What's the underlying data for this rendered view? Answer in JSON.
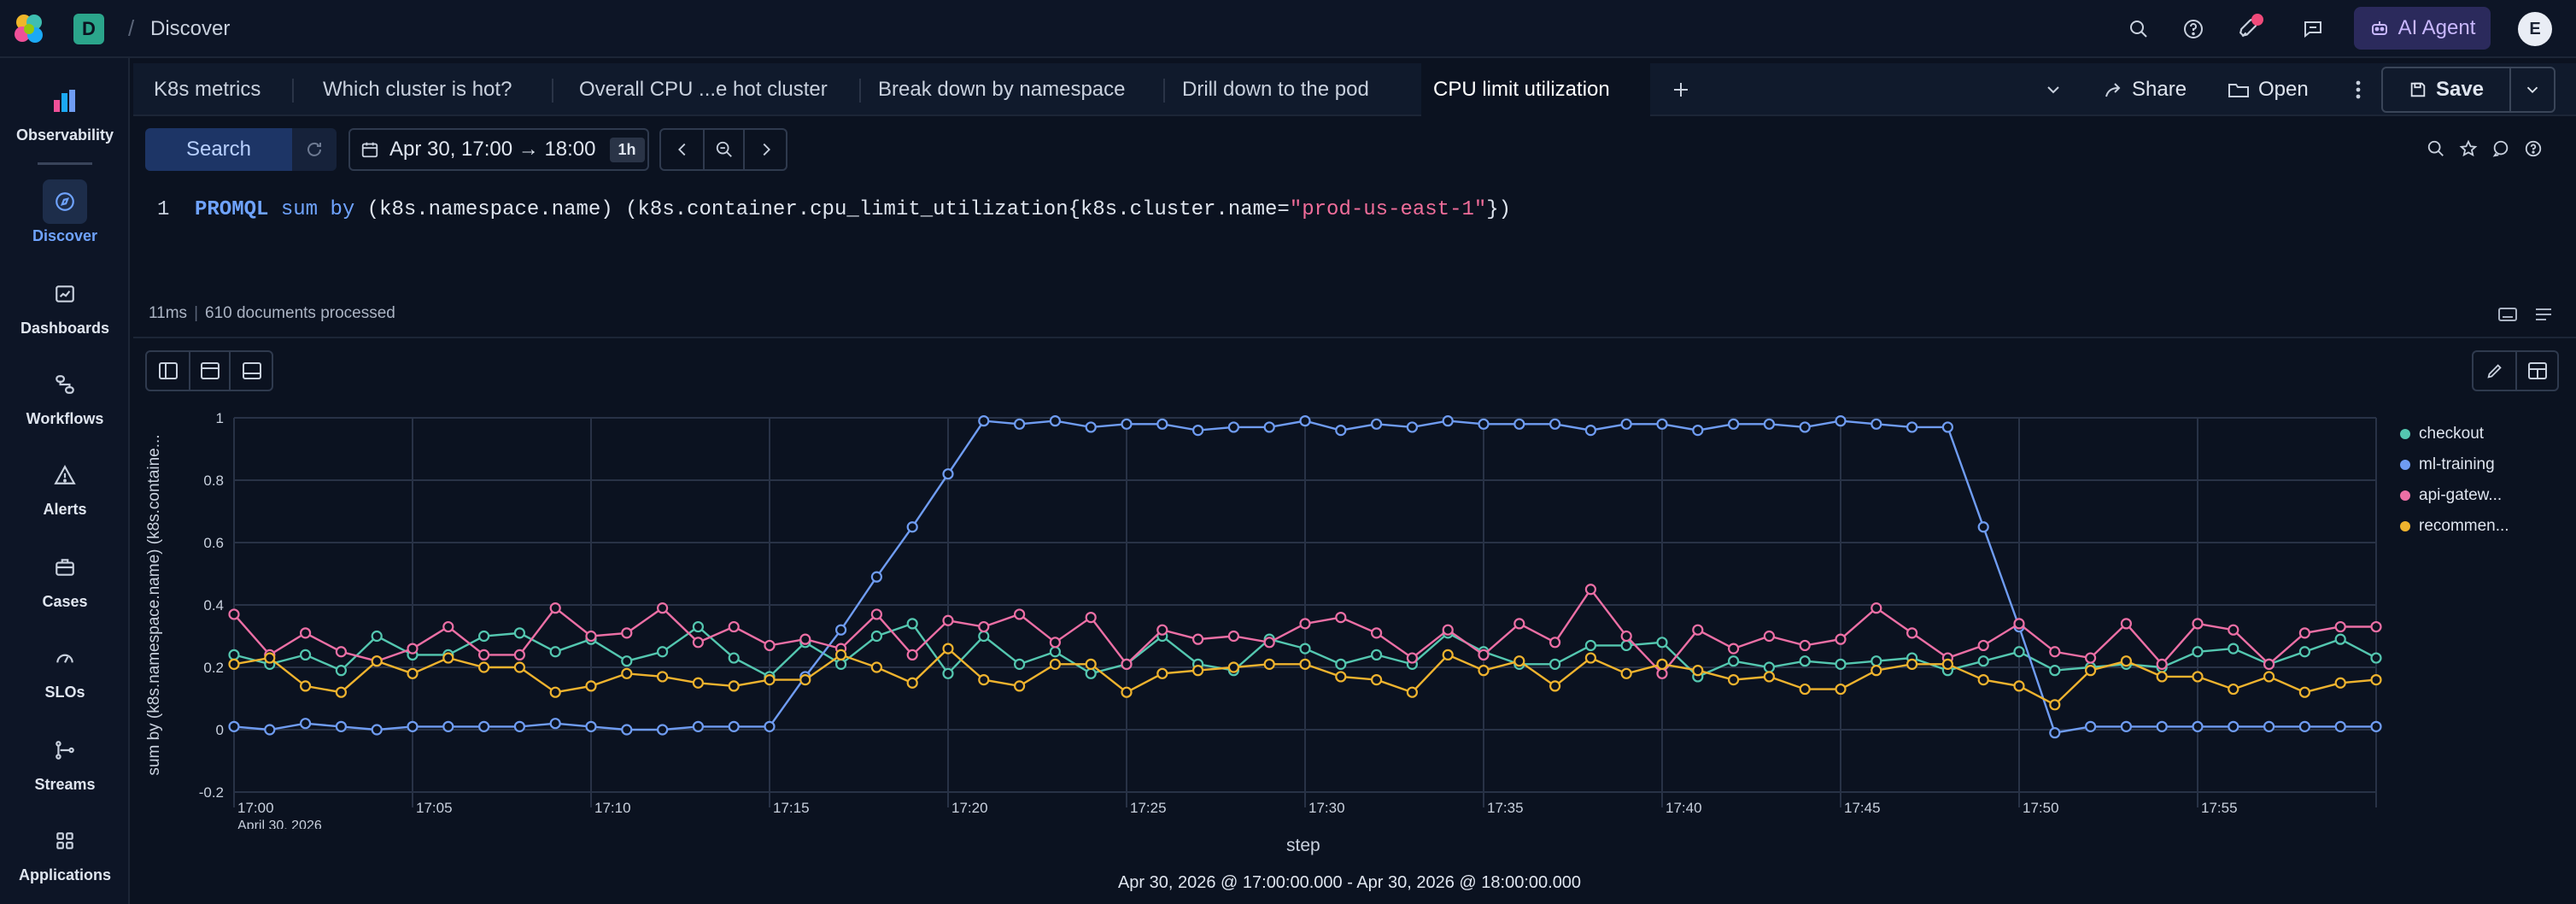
{
  "header": {
    "space_initial": "D",
    "breadcrumb": "Discover",
    "ai_agent_label": "AI Agent",
    "user_initial": "E"
  },
  "nav": {
    "items": [
      {
        "label": "Observability",
        "icon": "observability-icon"
      },
      {
        "label": "Discover",
        "icon": "discover-icon",
        "active": true
      },
      {
        "label": "Dashboards",
        "icon": "dashboards-icon"
      },
      {
        "label": "Workflows",
        "icon": "workflows-icon"
      },
      {
        "label": "Alerts",
        "icon": "alerts-icon"
      },
      {
        "label": "Cases",
        "icon": "cases-icon"
      },
      {
        "label": "SLOs",
        "icon": "slos-icon"
      },
      {
        "label": "Streams",
        "icon": "streams-icon"
      },
      {
        "label": "Applications",
        "icon": "applications-icon"
      }
    ]
  },
  "tabs": {
    "items": [
      {
        "label": "K8s metrics"
      },
      {
        "label": "Which cluster is hot?"
      },
      {
        "label": "Overall CPU ...e hot cluster"
      },
      {
        "label": "Break down by namespace"
      },
      {
        "label": "Drill down to the pod"
      },
      {
        "label": "CPU limit utilization",
        "active": true
      }
    ],
    "share_label": "Share",
    "open_label": "Open",
    "save_label": "Save"
  },
  "query": {
    "search_label": "Search",
    "date_range": "Apr 30, 17:00 → 18:00",
    "date_badge": "1h",
    "line_number": "1",
    "code_keyword": "PROMQL",
    "code_fn": "sum by",
    "code_mid": "(k8s.namespace.name) (k8s.container.cpu_limit_utilization{k8s.cluster.name=",
    "code_string": "\"prod-us-east-1\"",
    "code_end": "})"
  },
  "stats": {
    "duration": "11ms",
    "documents": "610 documents processed"
  },
  "chart_data": {
    "type": "line",
    "ylabel": "sum by (k8s.namespace.name) (k8s.containe...",
    "xlabel": "step",
    "x_sublabel": "April 30, 2026",
    "ylim": [
      -0.2,
      1
    ],
    "y_ticks": [
      "1",
      "0.8",
      "0.6",
      "0.4",
      "0.2",
      "0",
      "-0.2"
    ],
    "x_ticks": [
      "17:00",
      "17:05",
      "17:10",
      "17:15",
      "17:20",
      "17:25",
      "17:30",
      "17:35",
      "17:40",
      "17:45",
      "17:50",
      "17:55"
    ],
    "x": [
      "17:00",
      "17:01",
      "17:02",
      "17:03",
      "17:04",
      "17:05",
      "17:06",
      "17:07",
      "17:08",
      "17:09",
      "17:10",
      "17:11",
      "17:12",
      "17:13",
      "17:14",
      "17:15",
      "17:16",
      "17:17",
      "17:18",
      "17:19",
      "17:20",
      "17:21",
      "17:22",
      "17:23",
      "17:24",
      "17:25",
      "17:26",
      "17:27",
      "17:28",
      "17:29",
      "17:30",
      "17:31",
      "17:32",
      "17:33",
      "17:34",
      "17:35",
      "17:36",
      "17:37",
      "17:38",
      "17:39",
      "17:40",
      "17:41",
      "17:42",
      "17:43",
      "17:44",
      "17:45",
      "17:46",
      "17:47",
      "17:48",
      "17:49",
      "17:50",
      "17:51",
      "17:52",
      "17:53",
      "17:54",
      "17:55",
      "17:56",
      "17:57",
      "17:58",
      "17:59",
      "18:00"
    ],
    "grid": true,
    "legend_position": "right",
    "series": [
      {
        "name": "checkout",
        "color": "#54c7b0",
        "values": [
          0.24,
          0.21,
          0.24,
          0.19,
          0.3,
          0.24,
          0.24,
          0.3,
          0.31,
          0.25,
          0.29,
          0.22,
          0.25,
          0.33,
          0.23,
          0.17,
          0.28,
          0.21,
          0.3,
          0.34,
          0.18,
          0.3,
          0.21,
          0.25,
          0.18,
          0.21,
          0.3,
          0.21,
          0.19,
          0.29,
          0.26,
          0.21,
          0.24,
          0.21,
          0.31,
          0.25,
          0.21,
          0.21,
          0.27,
          0.27,
          0.28,
          0.17,
          0.22,
          0.2,
          0.22,
          0.21,
          0.22,
          0.23,
          0.19,
          0.22,
          0.25,
          0.19,
          0.2,
          0.21,
          0.2,
          0.25,
          0.26,
          0.21,
          0.25,
          0.29,
          0.23
        ]
      },
      {
        "name": "ml-training",
        "color": "#6f9cf2",
        "values": [
          0.01,
          0.0,
          0.02,
          0.01,
          0.0,
          0.01,
          0.01,
          0.01,
          0.01,
          0.02,
          0.01,
          0.0,
          0.0,
          0.01,
          0.01,
          0.01,
          0.17,
          0.32,
          0.49,
          0.65,
          0.82,
          0.99,
          0.98,
          0.99,
          0.97,
          0.98,
          0.98,
          0.96,
          0.97,
          0.97,
          0.99,
          0.96,
          0.98,
          0.97,
          0.99,
          0.98,
          0.98,
          0.98,
          0.96,
          0.98,
          0.98,
          0.96,
          0.98,
          0.98,
          0.97,
          0.99,
          0.98,
          0.97,
          0.97,
          0.65,
          0.33,
          -0.01,
          0.01,
          0.01,
          0.01,
          0.01,
          0.01,
          0.01,
          0.01,
          0.01,
          0.01
        ]
      },
      {
        "name": "api-gatew...",
        "color": "#ec6fa5",
        "values": [
          0.37,
          0.24,
          0.31,
          0.25,
          0.22,
          0.26,
          0.33,
          0.24,
          0.24,
          0.39,
          0.3,
          0.31,
          0.39,
          0.28,
          0.33,
          0.27,
          0.29,
          0.26,
          0.37,
          0.24,
          0.35,
          0.33,
          0.37,
          0.28,
          0.36,
          0.21,
          0.32,
          0.29,
          0.3,
          0.28,
          0.34,
          0.36,
          0.31,
          0.23,
          0.32,
          0.24,
          0.34,
          0.28,
          0.45,
          0.3,
          0.18,
          0.32,
          0.26,
          0.3,
          0.27,
          0.29,
          0.39,
          0.31,
          0.23,
          0.27,
          0.34,
          0.25,
          0.23,
          0.34,
          0.21,
          0.34,
          0.32,
          0.21,
          0.31,
          0.33,
          0.33
        ]
      },
      {
        "name": "recommen...",
        "color": "#efb32e",
        "values": [
          0.21,
          0.23,
          0.14,
          0.12,
          0.22,
          0.18,
          0.23,
          0.2,
          0.2,
          0.12,
          0.14,
          0.18,
          0.17,
          0.15,
          0.14,
          0.16,
          0.16,
          0.24,
          0.2,
          0.15,
          0.26,
          0.16,
          0.14,
          0.21,
          0.21,
          0.12,
          0.18,
          0.19,
          0.2,
          0.21,
          0.21,
          0.17,
          0.16,
          0.12,
          0.24,
          0.19,
          0.22,
          0.14,
          0.23,
          0.18,
          0.21,
          0.19,
          0.16,
          0.17,
          0.13,
          0.13,
          0.19,
          0.21,
          0.21,
          0.16,
          0.14,
          0.08,
          0.19,
          0.22,
          0.17,
          0.17,
          0.13,
          0.17,
          0.12,
          0.15,
          0.16
        ]
      }
    ]
  },
  "footer": {
    "range_text": "Apr 30, 2026 @ 17:00:00.000 - Apr 30, 2026 @ 18:00:00.000"
  }
}
